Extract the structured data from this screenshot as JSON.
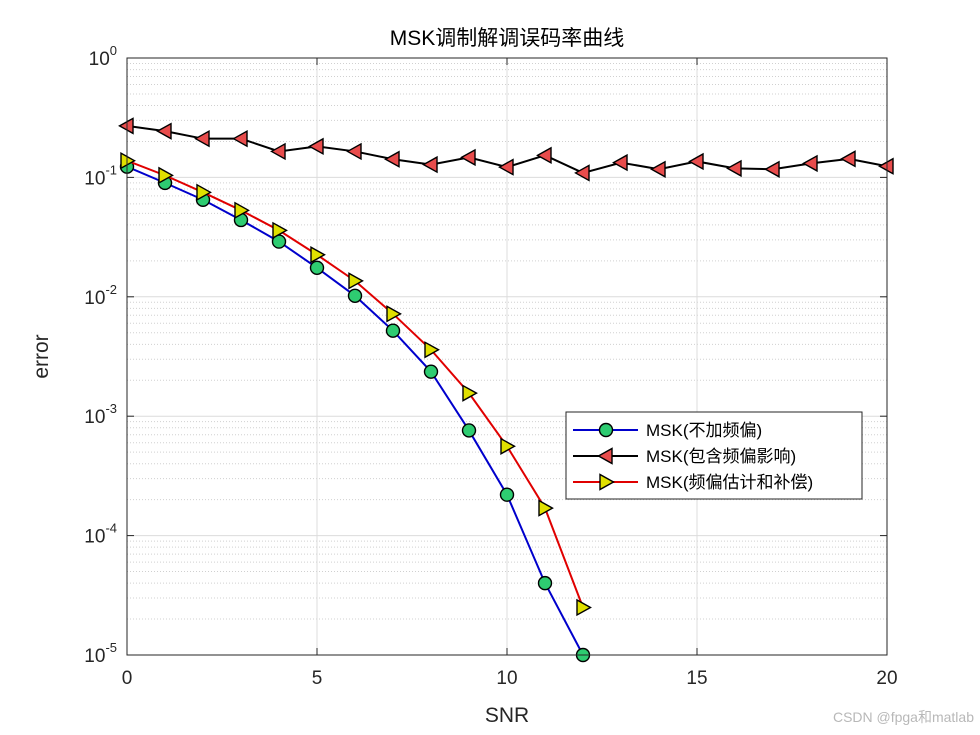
{
  "chart_data": {
    "type": "line",
    "title": "MSK调制解调误码率曲线",
    "xlabel": "SNR",
    "ylabel": "error",
    "xlim": [
      0,
      20
    ],
    "ylim": [
      1e-05,
      1
    ],
    "yscale": "log",
    "grid": true,
    "minor_grid": true,
    "legend_position": "right-middle",
    "xticks": [
      "0",
      "5",
      "10",
      "15",
      "20"
    ],
    "xtick_values": [
      0,
      5,
      10,
      15,
      20
    ],
    "yticks": [
      {
        "value": 1,
        "base": "10",
        "exp": "0"
      },
      {
        "value": 0.1,
        "base": "10",
        "exp": "-1"
      },
      {
        "value": 0.01,
        "base": "10",
        "exp": "-2"
      },
      {
        "value": 0.001,
        "base": "10",
        "exp": "-3"
      },
      {
        "value": 0.0001,
        "base": "10",
        "exp": "-4"
      },
      {
        "value": 1e-05,
        "base": "10",
        "exp": "-5"
      }
    ],
    "series": [
      {
        "name": "MSK(不加频偏)",
        "color": "#0000cc",
        "marker": "circle",
        "marker_fill": "#2ecc71",
        "x": [
          0,
          1,
          2,
          3,
          4,
          5,
          6,
          7,
          8,
          9,
          10,
          11,
          12
        ],
        "y": [
          0.123,
          0.09,
          0.065,
          0.044,
          0.029,
          0.0175,
          0.0102,
          0.0052,
          0.00236,
          0.00076,
          0.00022,
          4e-05,
          1e-05
        ]
      },
      {
        "name": "MSK(包含频偏影响)",
        "color": "#000000",
        "marker": "triangle-left",
        "marker_fill": "#e84c4c",
        "x": [
          0,
          1,
          2,
          3,
          4,
          5,
          6,
          7,
          8,
          9,
          10,
          11,
          12,
          13,
          14,
          15,
          16,
          17,
          18,
          19,
          20
        ],
        "y": [
          0.27,
          0.244,
          0.211,
          0.211,
          0.165,
          0.182,
          0.165,
          0.142,
          0.128,
          0.147,
          0.122,
          0.153,
          0.109,
          0.133,
          0.117,
          0.136,
          0.119,
          0.117,
          0.131,
          0.143,
          0.124
        ]
      },
      {
        "name": "MSK(频偏估计和补偿)",
        "color": "#e00000",
        "marker": "triangle-right",
        "marker_fill": "#e0e000",
        "x": [
          0,
          1,
          2,
          3,
          4,
          5,
          6,
          7,
          8,
          9,
          10,
          11,
          12
        ],
        "y": [
          0.138,
          0.104,
          0.075,
          0.053,
          0.036,
          0.0225,
          0.0136,
          0.0072,
          0.0036,
          0.00156,
          0.00056,
          0.00017,
          2.5e-05
        ]
      }
    ]
  },
  "watermark": "CSDN @fpga和matlab"
}
